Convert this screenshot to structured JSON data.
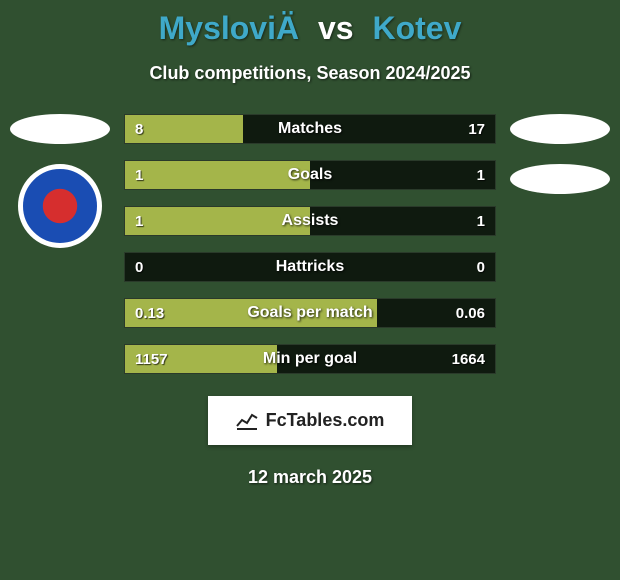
{
  "background_color": "#305030",
  "title": {
    "player1": "MysloviÄ",
    "vs": "vs",
    "player2": "Kotev",
    "color_p1": "#3fa9c9",
    "color_vs": "#ffffff",
    "color_p2": "#3fa9c9"
  },
  "subtitle": "Club competitions, Season 2024/2025",
  "bars": {
    "fill_color_left": "#a4b54a",
    "empty_color": "transparent",
    "border_color": "#2a3a2a",
    "track_bg": "#0f1a0f",
    "label_fontsize": 16,
    "value_fontsize": 15,
    "rows": [
      {
        "label": "Matches",
        "left_val": "8",
        "right_val": "17",
        "left_pct": 32,
        "right_pct": 68
      },
      {
        "label": "Goals",
        "left_val": "1",
        "right_val": "1",
        "left_pct": 50,
        "right_pct": 50
      },
      {
        "label": "Assists",
        "left_val": "1",
        "right_val": "1",
        "left_pct": 50,
        "right_pct": 50
      },
      {
        "label": "Hattricks",
        "left_val": "0",
        "right_val": "0",
        "left_pct": 0,
        "right_pct": 0
      },
      {
        "label": "Goals per match",
        "left_val": "0.13",
        "right_val": "0.06",
        "left_pct": 68,
        "right_pct": 32
      },
      {
        "label": "Min per goal",
        "left_val": "1157",
        "right_val": "1664",
        "left_pct": 41,
        "right_pct": 59
      }
    ]
  },
  "left_side": {
    "has_avatar_placeholder": true,
    "has_club_badge": true
  },
  "right_side": {
    "has_avatar_placeholder": true,
    "has_second_placeholder": true
  },
  "brand": "FcTables.com",
  "date": "12 march 2025"
}
